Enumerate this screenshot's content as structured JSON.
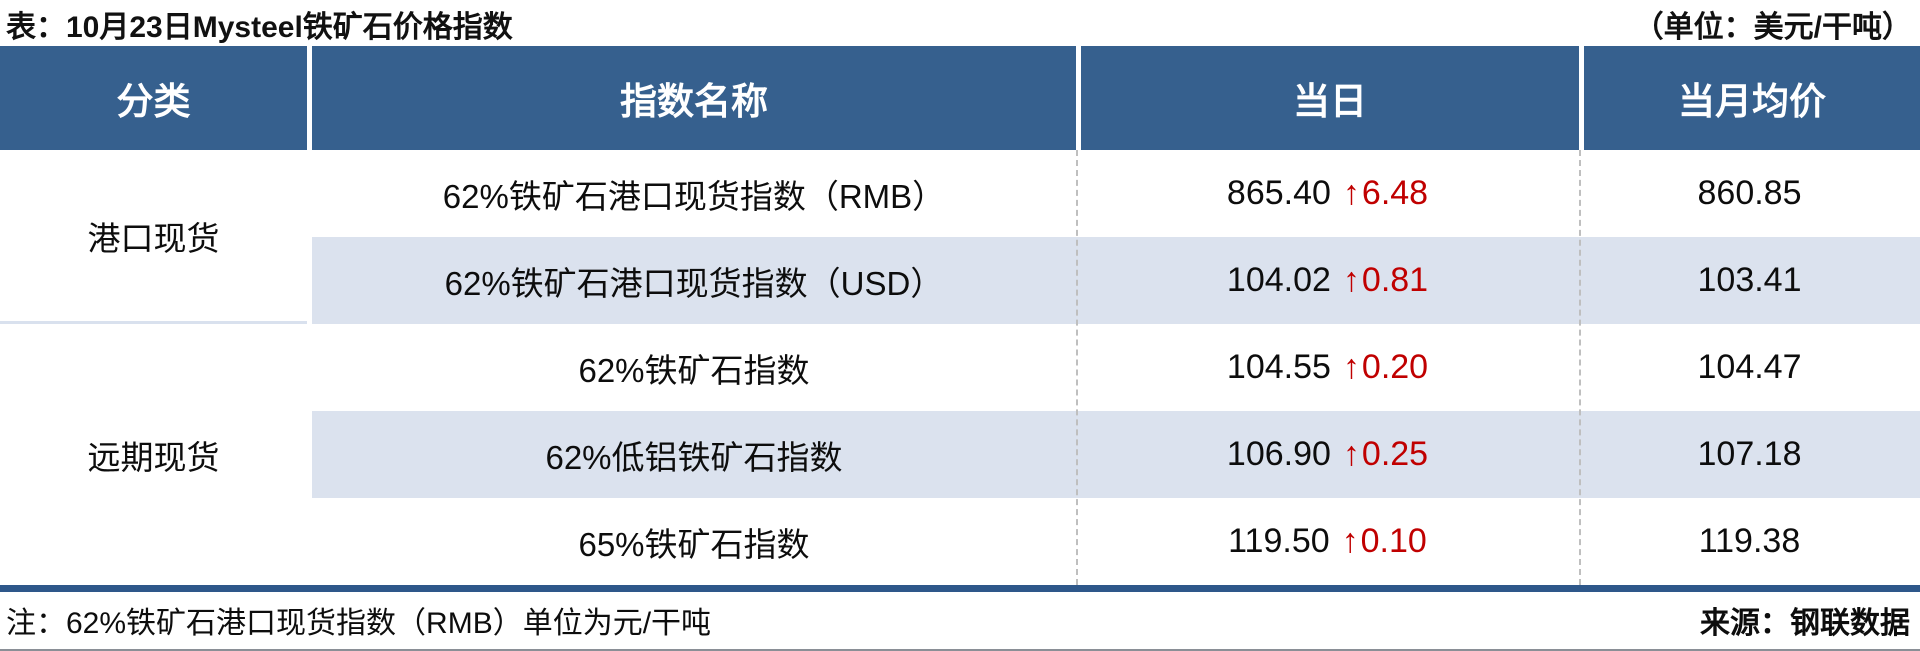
{
  "title": {
    "left": "表：10月23日Mysteel铁矿石价格指数",
    "right": "（单位：美元/干吨）"
  },
  "table": {
    "headers": {
      "category": "分类",
      "index_name": "指数名称",
      "today": "当日",
      "month_avg": "当月均价"
    },
    "groups": [
      {
        "label": "港口现货"
      },
      {
        "label": "远期现货"
      }
    ],
    "rows": [
      {
        "name": "62%铁矿石港口现货指数（RMB）",
        "today_value": "865.40",
        "change": "6.48",
        "direction": "up",
        "month_avg": "860.85"
      },
      {
        "name": "62%铁矿石港口现货指数（USD）",
        "today_value": "104.02",
        "change": "0.81",
        "direction": "up",
        "month_avg": "103.41"
      },
      {
        "name": "62%铁矿石指数",
        "today_value": "104.55",
        "change": "0.20",
        "direction": "up",
        "month_avg": "104.47"
      },
      {
        "name": "62%低铝铁矿石指数",
        "today_value": "106.90",
        "change": "0.25",
        "direction": "up",
        "month_avg": "107.18"
      },
      {
        "name": "65%铁矿石指数",
        "today_value": "119.50",
        "change": "0.10",
        "direction": "up",
        "month_avg": "119.38"
      }
    ],
    "up_arrow": "↑"
  },
  "footer": {
    "note": "注：62%铁矿石港口现货指数（RMB）单位为元/干吨",
    "source": "来源：钢联数据"
  },
  "colors": {
    "header_bg": "#36608E",
    "stripe_bg": "#DBE2EE",
    "change_red": "#C00000",
    "separator_blue": "#2E578A",
    "divider_dash": "#BFBFBF"
  },
  "chart_data": {
    "type": "table",
    "title": "表：10月23日Mysteel铁矿石价格指数",
    "unit": "（单位：美元/干吨）",
    "columns": [
      "分类",
      "指数名称",
      "当日",
      "当月均价"
    ],
    "rows": [
      [
        "港口现货",
        "62%铁矿石港口现货指数（RMB）",
        "865.40 ↑6.48",
        "860.85"
      ],
      [
        "港口现货",
        "62%铁矿石港口现货指数（USD）",
        "104.02 ↑0.81",
        "103.41"
      ],
      [
        "远期现货",
        "62%铁矿石指数",
        "104.55 ↑0.20",
        "104.47"
      ],
      [
        "远期现货",
        "62%低铝铁矿石指数",
        "106.90 ↑0.25",
        "107.18"
      ],
      [
        "远期现货",
        "65%铁矿石指数",
        "119.50 ↑0.10",
        "119.38"
      ]
    ],
    "note": "注：62%铁矿石港口现货指数（RMB）单位为元/干吨",
    "source": "来源：钢联数据"
  }
}
